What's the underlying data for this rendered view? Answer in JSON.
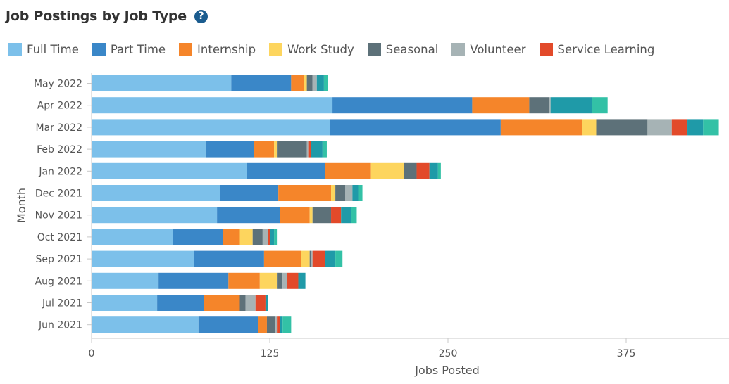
{
  "header": {
    "title": "Job Postings by Job Type",
    "help_icon": "question-circle-icon",
    "help_glyph": "?"
  },
  "chart_data": {
    "type": "bar",
    "orientation": "horizontal",
    "stacked": true,
    "title": "Job Postings by Job Type",
    "xlabel": "Jobs Posted",
    "ylabel": "Month",
    "xlim": [
      0,
      450
    ],
    "xticks": [
      0,
      125,
      250,
      375
    ],
    "grid": false,
    "legend_position": "top",
    "categories": [
      "May 2022",
      "Apr 2022",
      "Mar 2022",
      "Feb 2022",
      "Jan 2022",
      "Dec 2021",
      "Nov 2021",
      "Oct 2021",
      "Sep 2021",
      "Aug 2021",
      "Jul 2021",
      "Jun 2021"
    ],
    "series": [
      {
        "name": "Full Time",
        "color": "#7cc0ea",
        "values": [
          98,
          169,
          167,
          80,
          109,
          90,
          88,
          57,
          72,
          47,
          46,
          75
        ]
      },
      {
        "name": "Part Time",
        "color": "#3a87c8",
        "values": [
          42,
          98,
          120,
          34,
          55,
          41,
          44,
          35,
          49,
          49,
          33,
          42
        ]
      },
      {
        "name": "Internship",
        "color": "#f5852a",
        "values": [
          9,
          40,
          57,
          14,
          32,
          37,
          21,
          12,
          26,
          22,
          25,
          6
        ]
      },
      {
        "name": "Work Study",
        "color": "#fdd55e",
        "values": [
          2,
          0,
          10,
          2,
          23,
          3,
          2,
          9,
          6,
          12,
          0,
          0
        ]
      },
      {
        "name": "Seasonal",
        "color": "#5d7179",
        "values": [
          4,
          14,
          36,
          21,
          9,
          7,
          13,
          7,
          1,
          4,
          4,
          6
        ]
      },
      {
        "name": "Volunteer",
        "color": "#a6b3b5",
        "values": [
          3,
          1,
          17,
          1,
          0,
          5,
          0,
          4,
          1,
          3,
          7,
          1
        ]
      },
      {
        "name": "Service Learning",
        "color": "#e24a2a",
        "values": [
          0,
          0,
          11,
          2,
          9,
          0,
          7,
          1,
          9,
          8,
          7,
          2
        ]
      },
      {
        "name": "",
        "color": "#1f9aa8",
        "values": [
          5,
          29,
          11,
          8,
          6,
          4,
          7,
          3,
          7,
          5,
          2,
          2
        ]
      },
      {
        "name": "",
        "color": "#33c1a6",
        "values": [
          3,
          11,
          11,
          3,
          2,
          3,
          4,
          2,
          5,
          0,
          0,
          6
        ]
      }
    ]
  }
}
